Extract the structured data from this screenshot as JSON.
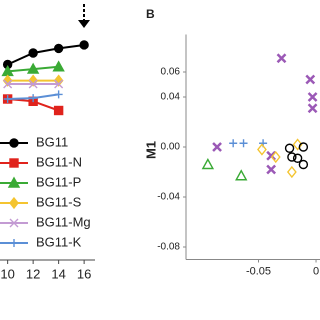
{
  "chart_data": [
    {
      "type": "line",
      "x": [
        10,
        12,
        14,
        16
      ],
      "xlim": [
        9.4,
        16.5
      ],
      "xticks": [
        10,
        12,
        14,
        16
      ],
      "ylim": [
        0,
        100
      ],
      "series": [
        {
          "name": "BG11",
          "color": "#000000",
          "marker": "circle-filled",
          "values": [
            85,
            90,
            92,
            93.5
          ]
        },
        {
          "name": "BG11-N",
          "color": "#e0231c",
          "marker": "square-filled",
          "values": [
            70,
            69,
            65,
            null
          ]
        },
        {
          "name": "BG11-P",
          "color": "#3aaa35",
          "marker": "triangle-filled",
          "values": [
            82,
            83,
            84,
            null
          ]
        },
        {
          "name": "BG11-S",
          "color": "#f4c430",
          "marker": "diamond-filled",
          "values": [
            78,
            78,
            78,
            null
          ]
        },
        {
          "name": "BG11-Mg",
          "color": "#c39bd3",
          "marker": "x",
          "values": [
            76.5,
            76.5,
            76.5,
            null
          ]
        },
        {
          "name": "BG11-K",
          "color": "#5b8fd6",
          "marker": "plus",
          "values": [
            70,
            70.4,
            72,
            null
          ]
        }
      ]
    },
    {
      "type": "scatter",
      "panel_label": "B",
      "y_label": "M1",
      "xlim": [
        -0.113,
        0.0034
      ],
      "xticks": [
        -0.05,
        0
      ],
      "ylim": [
        -0.09,
        0.09
      ],
      "yticks": [
        0.06,
        0.04,
        {
          "value": 0,
          "label": "0.00"
        },
        -0.04,
        -0.08
      ],
      "series": [
        {
          "color": "#9b59b6",
          "marker": "x-bold",
          "x": [
            -0.03,
            -0.005,
            -0.003,
            -0.003,
            -0.086,
            -0.039,
            -0.039
          ],
          "values": [
            0.071,
            0.054,
            0.04,
            0.031,
            0.0,
            -0.007,
            -0.018
          ]
        },
        {
          "color": "#3aaa35",
          "marker": "triangle",
          "x": [
            -0.094,
            -0.065
          ],
          "values": [
            -0.014,
            -0.023
          ]
        },
        {
          "color": "#5b8fd6",
          "marker": "plus",
          "x": [
            -0.072,
            -0.063,
            -0.046
          ],
          "values": [
            0.003,
            0.003,
            0.003
          ]
        },
        {
          "color": "#f4c430",
          "marker": "diamond",
          "x": [
            -0.047,
            -0.035,
            -0.021,
            -0.016
          ],
          "values": [
            -0.002,
            -0.008,
            -0.02,
            0.002
          ]
        },
        {
          "color": "#000000",
          "marker": "circle",
          "x": [
            -0.023,
            -0.016,
            -0.011,
            -0.011,
            -0.021
          ],
          "values": [
            -0.001,
            -0.009,
            -0.014,
            0.0,
            -0.008
          ]
        }
      ]
    }
  ]
}
